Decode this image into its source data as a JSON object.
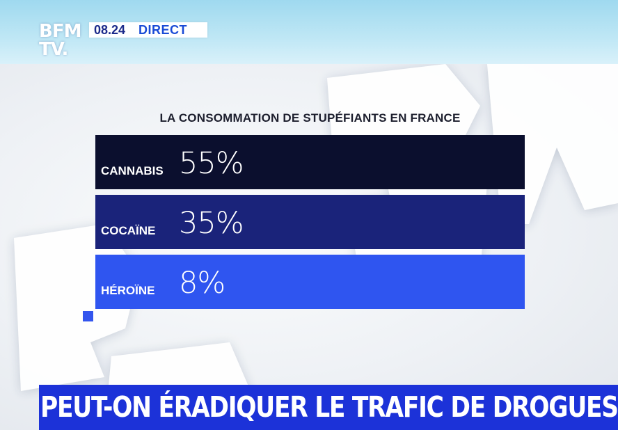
{
  "channel": {
    "logo_line1": "BFM",
    "logo_line2": "TV.",
    "time": "08.24",
    "live_label": "DIRECT"
  },
  "chart_data": {
    "type": "table",
    "title": "LA CONSOMMATION DE STUPÉFIANTS EN FRANCE",
    "rows": [
      {
        "label": "CANNABIS",
        "value": 55,
        "display": "55%",
        "color": "#0b0f2e"
      },
      {
        "label": "COCAÏNE",
        "value": 35,
        "display": "35%",
        "color": "#1a237a"
      },
      {
        "label": "HÉROÏNE",
        "value": 8,
        "display": "8%",
        "color": "#2f55f0"
      }
    ]
  },
  "headline": "PEUT-ON ÉRADIQUER LE TRAFIC DE DROGUES ?",
  "colors": {
    "brand_blue": "#1c32d8",
    "accent_square": "#3355ee"
  }
}
